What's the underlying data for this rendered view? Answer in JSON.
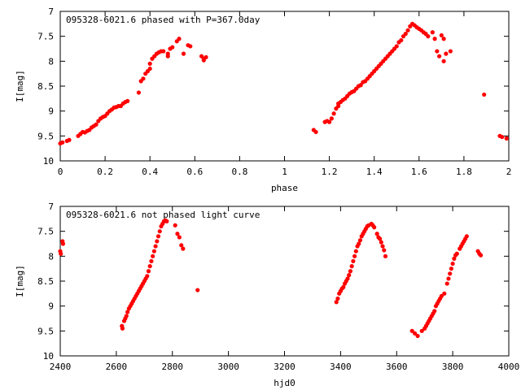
{
  "chart_data": [
    {
      "type": "scatter",
      "title": "095328-6021.6 phased with P=367.0day",
      "xlabel": "phase",
      "ylabel": "I[mag]",
      "xlim": [
        0,
        2
      ],
      "ylim": [
        10,
        7
      ],
      "y_inverted": true,
      "xticks": [
        "0",
        "0.2",
        "0.4",
        "0.6",
        "0.8",
        "1",
        "1.2",
        "1.4",
        "1.6",
        "1.8",
        "2"
      ],
      "yticks": [
        "7",
        "7.5",
        "8",
        "8.5",
        "9",
        "9.5",
        "10"
      ],
      "grid": false,
      "legend": "none",
      "marker_color": "#ff0000",
      "series": [
        {
          "points": [
            [
              0.0,
              9.65
            ],
            [
              0.01,
              9.63
            ],
            [
              0.03,
              9.6
            ],
            [
              0.04,
              9.58
            ],
            [
              0.08,
              9.5
            ],
            [
              0.09,
              9.46
            ],
            [
              0.1,
              9.42
            ],
            [
              0.11,
              9.43
            ],
            [
              0.12,
              9.4
            ],
            [
              0.13,
              9.38
            ],
            [
              0.14,
              9.33
            ],
            [
              0.15,
              9.3
            ],
            [
              0.16,
              9.27
            ],
            [
              0.17,
              9.2
            ],
            [
              0.18,
              9.15
            ],
            [
              0.19,
              9.12
            ],
            [
              0.2,
              9.1
            ],
            [
              0.21,
              9.05
            ],
            [
              0.22,
              9.0
            ],
            [
              0.23,
              8.97
            ],
            [
              0.24,
              8.93
            ],
            [
              0.25,
              8.92
            ],
            [
              0.26,
              8.9
            ],
            [
              0.27,
              8.9
            ],
            [
              0.28,
              8.85
            ],
            [
              0.29,
              8.82
            ],
            [
              0.3,
              8.8
            ],
            [
              0.35,
              8.63
            ],
            [
              0.36,
              8.4
            ],
            [
              0.37,
              8.35
            ],
            [
              0.38,
              8.25
            ],
            [
              0.39,
              8.2
            ],
            [
              0.4,
              8.15
            ],
            [
              0.4,
              8.05
            ],
            [
              0.41,
              7.95
            ],
            [
              0.42,
              7.9
            ],
            [
              0.43,
              7.85
            ],
            [
              0.44,
              7.82
            ],
            [
              0.45,
              7.8
            ],
            [
              0.46,
              7.8
            ],
            [
              0.48,
              7.85
            ],
            [
              0.48,
              7.9
            ],
            [
              0.49,
              7.75
            ],
            [
              0.5,
              7.72
            ],
            [
              0.52,
              7.6
            ],
            [
              0.53,
              7.55
            ],
            [
              0.55,
              7.85
            ],
            [
              0.57,
              7.68
            ],
            [
              0.58,
              7.7
            ],
            [
              0.63,
              7.9
            ],
            [
              0.64,
              7.95
            ],
            [
              0.64,
              7.98
            ],
            [
              0.65,
              7.92
            ],
            [
              1.13,
              9.38
            ],
            [
              1.14,
              9.42
            ],
            [
              1.18,
              9.22
            ],
            [
              1.19,
              9.2
            ],
            [
              1.2,
              9.22
            ],
            [
              1.21,
              9.15
            ],
            [
              1.22,
              9.05
            ],
            [
              1.23,
              8.95
            ],
            [
              1.24,
              8.9
            ],
            [
              1.24,
              8.85
            ],
            [
              1.25,
              8.82
            ],
            [
              1.26,
              8.78
            ],
            [
              1.27,
              8.75
            ],
            [
              1.28,
              8.7
            ],
            [
              1.29,
              8.65
            ],
            [
              1.3,
              8.62
            ],
            [
              1.31,
              8.6
            ],
            [
              1.32,
              8.55
            ],
            [
              1.33,
              8.5
            ],
            [
              1.34,
              8.48
            ],
            [
              1.35,
              8.42
            ],
            [
              1.36,
              8.4
            ],
            [
              1.37,
              8.35
            ],
            [
              1.38,
              8.3
            ],
            [
              1.39,
              8.25
            ],
            [
              1.4,
              8.2
            ],
            [
              1.41,
              8.15
            ],
            [
              1.42,
              8.1
            ],
            [
              1.43,
              8.05
            ],
            [
              1.44,
              8.0
            ],
            [
              1.45,
              7.95
            ],
            [
              1.46,
              7.9
            ],
            [
              1.47,
              7.85
            ],
            [
              1.48,
              7.8
            ],
            [
              1.49,
              7.75
            ],
            [
              1.5,
              7.7
            ],
            [
              1.51,
              7.62
            ],
            [
              1.52,
              7.58
            ],
            [
              1.53,
              7.5
            ],
            [
              1.54,
              7.45
            ],
            [
              1.55,
              7.38
            ],
            [
              1.56,
              7.3
            ],
            [
              1.57,
              7.25
            ],
            [
              1.58,
              7.28
            ],
            [
              1.59,
              7.32
            ],
            [
              1.6,
              7.35
            ],
            [
              1.61,
              7.38
            ],
            [
              1.62,
              7.42
            ],
            [
              1.63,
              7.45
            ],
            [
              1.64,
              7.5
            ],
            [
              1.66,
              7.42
            ],
            [
              1.67,
              7.55
            ],
            [
              1.68,
              7.8
            ],
            [
              1.69,
              7.9
            ],
            [
              1.7,
              7.48
            ],
            [
              1.71,
              7.55
            ],
            [
              1.71,
              8.0
            ],
            [
              1.72,
              7.85
            ],
            [
              1.74,
              7.8
            ],
            [
              1.89,
              8.67
            ],
            [
              1.96,
              9.5
            ],
            [
              1.97,
              9.52
            ],
            [
              1.99,
              9.55
            ]
          ]
        }
      ]
    },
    {
      "type": "scatter",
      "title": "095328-6021.6 not phased light curve",
      "xlabel": "hjd0",
      "ylabel": "I[mag]",
      "xlim": [
        2400,
        4000
      ],
      "ylim": [
        10,
        7
      ],
      "y_inverted": true,
      "xticks": [
        "2400",
        "2600",
        "2800",
        "3000",
        "3200",
        "3400",
        "3600",
        "3800",
        "4000"
      ],
      "yticks": [
        "7",
        "7.5",
        "8",
        "8.5",
        "9",
        "9.5",
        "10"
      ],
      "grid": false,
      "legend": "none",
      "marker_color": "#ff0000",
      "series": [
        {
          "points": [
            [
              2400,
              7.9
            ],
            [
              2402,
              7.95
            ],
            [
              2408,
              7.7
            ],
            [
              2410,
              7.75
            ],
            [
              2620,
              9.4
            ],
            [
              2622,
              9.45
            ],
            [
              2628,
              9.3
            ],
            [
              2632,
              9.25
            ],
            [
              2636,
              9.2
            ],
            [
              2640,
              9.12
            ],
            [
              2645,
              9.05
            ],
            [
              2650,
              9.0
            ],
            [
              2655,
              8.95
            ],
            [
              2660,
              8.9
            ],
            [
              2665,
              8.85
            ],
            [
              2670,
              8.8
            ],
            [
              2675,
              8.75
            ],
            [
              2680,
              8.7
            ],
            [
              2685,
              8.65
            ],
            [
              2690,
              8.6
            ],
            [
              2695,
              8.55
            ],
            [
              2700,
              8.5
            ],
            [
              2705,
              8.45
            ],
            [
              2710,
              8.4
            ],
            [
              2715,
              8.3
            ],
            [
              2720,
              8.2
            ],
            [
              2725,
              8.1
            ],
            [
              2730,
              8.0
            ],
            [
              2735,
              7.9
            ],
            [
              2740,
              7.8
            ],
            [
              2745,
              7.7
            ],
            [
              2750,
              7.6
            ],
            [
              2755,
              7.5
            ],
            [
              2760,
              7.4
            ],
            [
              2765,
              7.35
            ],
            [
              2770,
              7.3
            ],
            [
              2775,
              7.28
            ],
            [
              2780,
              7.3
            ],
            [
              2810,
              7.38
            ],
            [
              2818,
              7.55
            ],
            [
              2825,
              7.62
            ],
            [
              2832,
              7.78
            ],
            [
              2838,
              7.85
            ],
            [
              2890,
              8.68
            ],
            [
              3385,
              8.92
            ],
            [
              3390,
              8.85
            ],
            [
              3395,
              8.75
            ],
            [
              3400,
              8.7
            ],
            [
              3405,
              8.65
            ],
            [
              3410,
              8.62
            ],
            [
              3415,
              8.55
            ],
            [
              3420,
              8.5
            ],
            [
              3425,
              8.45
            ],
            [
              3430,
              8.38
            ],
            [
              3435,
              8.3
            ],
            [
              3440,
              8.2
            ],
            [
              3445,
              8.1
            ],
            [
              3450,
              8.0
            ],
            [
              3455,
              7.9
            ],
            [
              3460,
              7.8
            ],
            [
              3465,
              7.75
            ],
            [
              3470,
              7.68
            ],
            [
              3475,
              7.6
            ],
            [
              3480,
              7.55
            ],
            [
              3485,
              7.5
            ],
            [
              3490,
              7.45
            ],
            [
              3495,
              7.4
            ],
            [
              3500,
              7.38
            ],
            [
              3510,
              7.35
            ],
            [
              3515,
              7.38
            ],
            [
              3520,
              7.42
            ],
            [
              3530,
              7.55
            ],
            [
              3535,
              7.62
            ],
            [
              3540,
              7.65
            ],
            [
              3545,
              7.72
            ],
            [
              3550,
              7.8
            ],
            [
              3555,
              7.88
            ],
            [
              3560,
              8.0
            ],
            [
              3655,
              9.5
            ],
            [
              3665,
              9.55
            ],
            [
              3675,
              9.6
            ],
            [
              3690,
              9.5
            ],
            [
              3700,
              9.45
            ],
            [
              3705,
              9.4
            ],
            [
              3710,
              9.35
            ],
            [
              3715,
              9.3
            ],
            [
              3720,
              9.25
            ],
            [
              3725,
              9.2
            ],
            [
              3730,
              9.15
            ],
            [
              3735,
              9.1
            ],
            [
              3740,
              9.0
            ],
            [
              3745,
              8.95
            ],
            [
              3750,
              8.9
            ],
            [
              3755,
              8.85
            ],
            [
              3760,
              8.8
            ],
            [
              3770,
              8.75
            ],
            [
              3780,
              8.55
            ],
            [
              3785,
              8.45
            ],
            [
              3790,
              8.35
            ],
            [
              3795,
              8.25
            ],
            [
              3800,
              8.15
            ],
            [
              3805,
              8.05
            ],
            [
              3810,
              7.98
            ],
            [
              3815,
              7.95
            ],
            [
              3825,
              7.85
            ],
            [
              3830,
              7.8
            ],
            [
              3835,
              7.75
            ],
            [
              3840,
              7.7
            ],
            [
              3845,
              7.65
            ],
            [
              3850,
              7.6
            ],
            [
              3890,
              7.9
            ],
            [
              3895,
              7.95
            ],
            [
              3900,
              7.98
            ]
          ]
        }
      ]
    }
  ]
}
